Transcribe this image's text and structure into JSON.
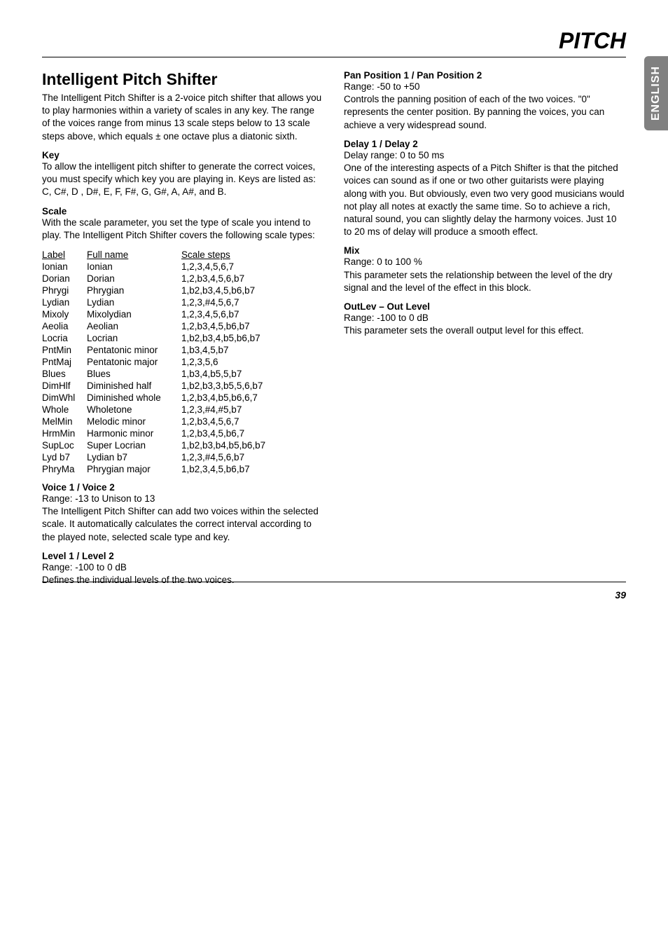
{
  "page": {
    "header": "PITCH",
    "side_tab": "ENGLISH",
    "page_number": "39"
  },
  "left": {
    "title": "Intelligent Pitch Shifter",
    "intro": "The Intelligent Pitch Shifter is a 2-voice pitch shifter that allows you to play harmonies within a variety of scales in any key. The range of the voices range from minus 13 scale steps below to 13 scale steps above, which equals ± one octave plus a diatonic sixth.",
    "key": {
      "title": "Key",
      "text": "To allow the intelligent pitch shifter to generate the correct voices, you must specify which key you are playing in. Keys are listed as: C, C#, D , D#, E, F, F#, G, G#, A, A#, and B."
    },
    "scale": {
      "title": "Scale",
      "text": "With the scale parameter, you set the type of scale you intend to play. The Intelligent Pitch Shifter covers the following scale types:"
    },
    "table": {
      "headers": [
        "Label",
        "Full name",
        "Scale steps"
      ],
      "rows": [
        [
          "Ionian",
          "Ionian",
          "1,2,3,4,5,6,7"
        ],
        [
          "Dorian",
          "Dorian",
          "1,2,b3,4,5,6,b7"
        ],
        [
          "Phrygi",
          "Phrygian",
          "1,b2,b3,4,5,b6,b7"
        ],
        [
          "Lydian",
          "Lydian",
          "1,2,3,#4,5,6,7"
        ],
        [
          "Mixoly",
          "Mixolydian",
          "1,2,3,4,5,6,b7"
        ],
        [
          "Aeolia",
          "Aeolian",
          "1,2,b3,4,5,b6,b7"
        ],
        [
          "Locria",
          "Locrian",
          "1,b2,b3,4,b5,b6,b7"
        ],
        [
          "PntMin",
          "Pentatonic minor",
          "1,b3,4,5,b7"
        ],
        [
          "PntMaj",
          "Pentatonic major",
          "1,2,3,5,6"
        ],
        [
          "Blues",
          "Blues",
          "1,b3,4,b5,5,b7"
        ],
        [
          "DimHlf",
          "Diminished half",
          "1,b2,b3,3,b5,5,6,b7"
        ],
        [
          "DimWhl",
          "Diminished whole",
          "1,2,b3,4,b5,b6,6,7"
        ],
        [
          "Whole",
          "Wholetone",
          "1,2,3,#4,#5,b7"
        ],
        [
          "MelMin",
          "Melodic minor",
          "1,2,b3,4,5,6,7"
        ],
        [
          "HrmMin",
          "Harmonic minor",
          "1,2,b3,4,5,b6,7"
        ],
        [
          "SupLoc",
          "Super Locrian",
          "1,b2,b3,b4,b5,b6,b7"
        ],
        [
          "Lyd b7",
          "Lydian b7",
          "1,2,3,#4,5,6,b7"
        ],
        [
          "PhryMa",
          "Phrygian major",
          "1,b2,3,4,5,b6,b7"
        ]
      ]
    },
    "voice": {
      "title": "Voice 1 / Voice 2",
      "range": "Range: -13 to Unison to 13",
      "text": "The Intelligent Pitch Shifter can add two voices within the selected scale. It automatically calculates the correct interval according to the played note, selected scale type and key."
    },
    "level": {
      "title": "Level 1 / Level 2",
      "range": "Range: -100 to 0 dB",
      "text": "Defines the individual levels of the two voices."
    }
  },
  "right": {
    "pan": {
      "title": "Pan Position 1 / Pan Position 2",
      "range": "Range: -50 to +50",
      "text": "Controls the panning position of each of the two voices. \"0\" represents the center position. By panning the voices, you can achieve a very widespread sound."
    },
    "delay": {
      "title": "Delay 1 / Delay 2",
      "range": "Delay range: 0 to 50 ms",
      "text": "One of the interesting aspects of a Pitch Shifter is that the pitched voices can sound as if one or two other guitarists were playing along with you. But obviously, even two very good musicians would not play all notes at exactly the same time. So to achieve a rich, natural sound, you can slightly delay the harmony voices. Just 10 to 20 ms of delay will produce a smooth effect."
    },
    "mix": {
      "title": "Mix",
      "range": "Range: 0 to 100 %",
      "text": "This parameter sets the relationship between the level of the dry signal and the level of the effect in this block."
    },
    "outlev": {
      "title": "OutLev – Out Level",
      "range": "Range: -100 to 0 dB",
      "text": "This parameter sets the overall output level for this effect."
    }
  }
}
